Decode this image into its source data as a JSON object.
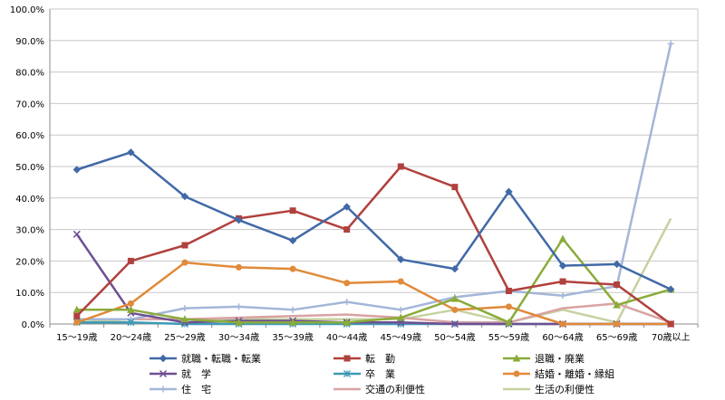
{
  "chart_data": {
    "type": "line",
    "title": "",
    "xlabel": "",
    "ylabel": "",
    "ylim": [
      0,
      100
    ],
    "y_ticks": [
      "0.0%",
      "10.0%",
      "20.0%",
      "30.0%",
      "40.0%",
      "50.0%",
      "60.0%",
      "70.0%",
      "80.0%",
      "90.0%",
      "100.0%"
    ],
    "grid": "horizontal",
    "legend_position": "bottom",
    "categories": [
      "15～19歳",
      "20～24歳",
      "25～29歳",
      "30～34歳",
      "35～39歳",
      "40～44歳",
      "45～49歳",
      "50～54歳",
      "55～59歳",
      "60～64歳",
      "65～69歳",
      "70歳以上"
    ],
    "series": [
      {
        "name": "就職・転職・転業",
        "color": "#4169A8",
        "marker": "diamond",
        "values": [
          49.0,
          54.5,
          40.5,
          33.0,
          26.5,
          37.2,
          20.5,
          17.5,
          42.0,
          18.5,
          19.0,
          11.0
        ]
      },
      {
        "name": "転　勤",
        "color": "#B0413E",
        "marker": "square",
        "values": [
          2.5,
          20.0,
          25.0,
          33.5,
          36.0,
          30.0,
          50.0,
          43.5,
          10.5,
          13.5,
          12.5,
          0.0
        ]
      },
      {
        "name": "退職・廃業",
        "color": "#8AAB3A",
        "marker": "triangle",
        "values": [
          4.5,
          4.5,
          1.5,
          0.5,
          0.5,
          0.5,
          2.0,
          8.0,
          0.5,
          27.0,
          6.0,
          11.0
        ]
      },
      {
        "name": "就　学",
        "color": "#6E4F92",
        "marker": "x",
        "values": [
          28.5,
          3.5,
          0.5,
          1.0,
          1.0,
          0.5,
          0.5,
          0.0,
          0.0,
          0.0,
          0.0,
          0.0
        ]
      },
      {
        "name": "卒　業",
        "color": "#3E9BB5",
        "marker": "asterisk",
        "values": [
          0.5,
          0.5,
          0.0,
          0.0,
          0.0,
          0.0,
          0.0,
          0.0,
          0.0,
          0.0,
          0.0,
          0.0
        ]
      },
      {
        "name": "結婚・離婚・縁組",
        "color": "#E08A3A",
        "marker": "circle",
        "values": [
          0.5,
          6.5,
          19.5,
          18.0,
          17.5,
          13.0,
          13.5,
          4.5,
          5.5,
          0.0,
          0.0,
          0.0
        ]
      },
      {
        "name": "住　宅",
        "color": "#A4B6D8",
        "marker": "plus",
        "values": [
          1.5,
          1.5,
          5.0,
          5.5,
          4.5,
          7.0,
          4.5,
          8.5,
          10.5,
          9.0,
          12.0,
          89.0
        ]
      },
      {
        "name": "交通の利便性",
        "color": "#D9A3A3",
        "marker": "none",
        "values": [
          1.5,
          1.5,
          1.5,
          2.0,
          2.5,
          3.0,
          2.0,
          0.5,
          0.5,
          5.0,
          6.5,
          0.5
        ]
      },
      {
        "name": "生活の利便性",
        "color": "#C5D2A0",
        "marker": "none",
        "values": [
          0.5,
          1.5,
          1.5,
          1.5,
          1.5,
          1.5,
          1.5,
          4.5,
          0.5,
          4.5,
          0.5,
          33.5
        ]
      }
    ]
  }
}
